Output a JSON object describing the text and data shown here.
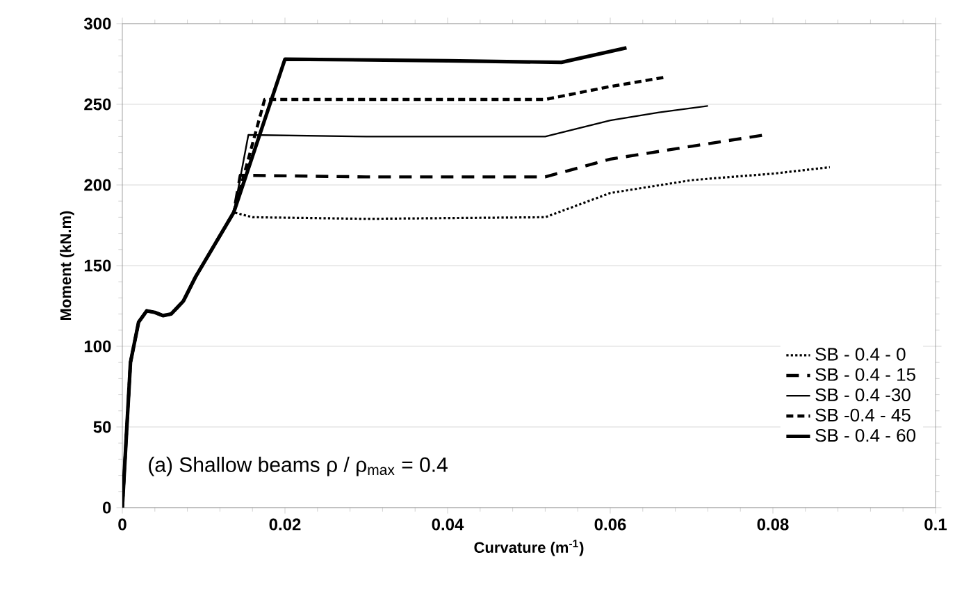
{
  "chart_data": {
    "type": "line",
    "xlabel": "Curvature (m$^{-1}$)",
    "ylabel": "Moment (kN.m)",
    "annotations": [
      "(a) Shallow beams  ρ / ρ$_{max}$ = 0.4"
    ],
    "xlim": [
      0,
      0.1
    ],
    "ylim": [
      0,
      300
    ],
    "xticks": [
      0,
      0.02,
      0.04,
      0.06,
      0.08,
      0.1
    ],
    "yticks": [
      0,
      50,
      100,
      150,
      200,
      250,
      300
    ],
    "grid": "y",
    "legend": "bottom right",
    "marker": "none",
    "series": [
      {
        "name": "SB - 0.4 - 0",
        "color": "#000000",
        "line_style": "dotted",
        "x": [
          0,
          0.001,
          0.002,
          0.003,
          0.004,
          0.005,
          0.006,
          0.0075,
          0.009,
          0.0137,
          0.016,
          0.03,
          0.052,
          0.06,
          0.07,
          0.08,
          0.087
        ],
        "values": [
          0,
          90,
          115,
          122,
          121,
          119,
          120,
          128,
          143,
          183,
          180,
          179,
          180,
          195,
          203,
          207,
          211
        ]
      },
      {
        "name": "SB - 0.4 - 15",
        "color": "#000000",
        "line_style": "dashed",
        "x": [
          0,
          0.001,
          0.002,
          0.003,
          0.004,
          0.005,
          0.006,
          0.0075,
          0.009,
          0.0137,
          0.0145,
          0.03,
          0.052,
          0.06,
          0.07,
          0.079
        ],
        "values": [
          0,
          90,
          115,
          122,
          121,
          119,
          120,
          128,
          143,
          183,
          206,
          205,
          205,
          216,
          224,
          231
        ]
      },
      {
        "name": "SB - 0.4 -30",
        "color": "#000000",
        "line_style": "solid",
        "x": [
          0,
          0.001,
          0.002,
          0.003,
          0.004,
          0.005,
          0.006,
          0.0075,
          0.009,
          0.0137,
          0.0155,
          0.03,
          0.052,
          0.06,
          0.066,
          0.072
        ],
        "values": [
          0,
          90,
          115,
          122,
          121,
          119,
          120,
          128,
          143,
          183,
          231,
          230,
          230,
          240,
          245,
          249
        ]
      },
      {
        "name": "SB -0.4 - 45",
        "color": "#000000",
        "line_style": "dashed",
        "x": [
          0,
          0.001,
          0.002,
          0.003,
          0.004,
          0.005,
          0.006,
          0.0075,
          0.009,
          0.0137,
          0.0175,
          0.03,
          0.052,
          0.06,
          0.067
        ],
        "values": [
          0,
          90,
          115,
          122,
          121,
          119,
          120,
          128,
          143,
          183,
          253,
          253,
          253,
          261,
          267
        ]
      },
      {
        "name": "SB - 0.4 - 60",
        "color": "#000000",
        "line_style": "solid",
        "x": [
          0,
          0.001,
          0.002,
          0.003,
          0.004,
          0.005,
          0.006,
          0.0075,
          0.009,
          0.0137,
          0.02,
          0.04,
          0.054,
          0.062
        ],
        "values": [
          0,
          90,
          115,
          122,
          121,
          119,
          120,
          128,
          143,
          183,
          278,
          277,
          276,
          285
        ]
      }
    ]
  }
}
